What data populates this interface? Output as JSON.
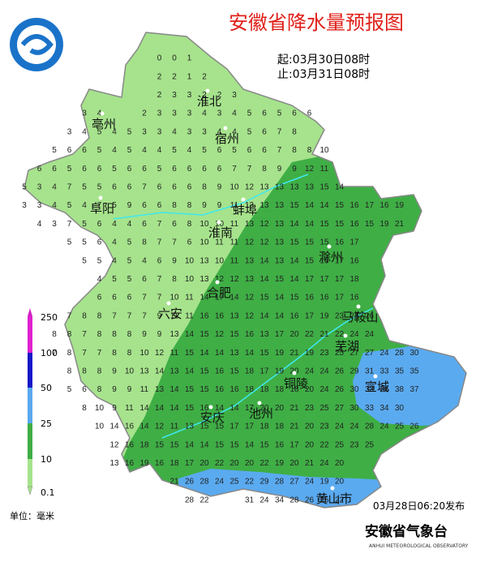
{
  "title": "安徽省降水量预报图",
  "period": {
    "start": "起:03月30日08时",
    "end": "止:03月31日08时"
  },
  "cities": [
    "淮北",
    "亳州",
    "宿州",
    "阜阳",
    "蚌埠",
    "淮南",
    "滁州",
    "合肥",
    "六安",
    "马鞍山",
    "芜湖",
    "铜陵",
    "宣城",
    "安庆",
    "池州",
    "黄山市"
  ],
  "legend": {
    "labels": [
      "250",
      "100",
      "50",
      "25",
      "10",
      "0.1"
    ],
    "unit": "单位：毫米"
  },
  "footer": {
    "issued": "03月28日06:20发布",
    "agency": "安徽省气象台",
    "agency_en": "ANHUI METEOROLOGICAL OBSERVATORY"
  },
  "grid": {
    "rows": [
      [
        null,
        null,
        null,
        null,
        null,
        null,
        null,
        null,
        null,
        0,
        0,
        1
      ],
      [
        null,
        null,
        null,
        null,
        null,
        null,
        null,
        null,
        null,
        2,
        2,
        1,
        2
      ],
      [
        null,
        null,
        null,
        null,
        null,
        null,
        null,
        null,
        null,
        2,
        3,
        3,
        2,
        2,
        3
      ],
      [
        null,
        null,
        null,
        null,
        3,
        4,
        null,
        null,
        2,
        3,
        3,
        3,
        4,
        3,
        4,
        5,
        6,
        5,
        6,
        6
      ],
      [
        null,
        null,
        null,
        3,
        4,
        5,
        4,
        5,
        3,
        3,
        4,
        3,
        3,
        4,
        4,
        5,
        6,
        7,
        8
      ],
      [
        null,
        null,
        5,
        6,
        6,
        5,
        4,
        5,
        4,
        4,
        5,
        4,
        5,
        6,
        5,
        6,
        6,
        7,
        8,
        8,
        10
      ],
      [
        null,
        6,
        6,
        5,
        6,
        6,
        5,
        6,
        6,
        5,
        6,
        6,
        6,
        6,
        7,
        7,
        8,
        9,
        9,
        12,
        11
      ],
      [
        5,
        3,
        4,
        7,
        5,
        5,
        6,
        6,
        7,
        6,
        6,
        6,
        8,
        9,
        10,
        12,
        13,
        13,
        13,
        13,
        15,
        14
      ],
      [
        3,
        3,
        4,
        5,
        4,
        7,
        5,
        9,
        6,
        6,
        8,
        8,
        9,
        9,
        11,
        13,
        13,
        13,
        15,
        14,
        14,
        15,
        16,
        17,
        16,
        19
      ],
      [
        null,
        4,
        3,
        7,
        5,
        6,
        4,
        4,
        6,
        7,
        6,
        8,
        10,
        10,
        11,
        13,
        12,
        13,
        14,
        14,
        15,
        15,
        16,
        15,
        19,
        21
      ],
      [
        null,
        null,
        null,
        5,
        5,
        6,
        4,
        5,
        8,
        7,
        7,
        6,
        10,
        11,
        11,
        12,
        12,
        13,
        15,
        15,
        15,
        16,
        17
      ],
      [
        null,
        null,
        null,
        null,
        5,
        5,
        4,
        5,
        4,
        6,
        9,
        10,
        13,
        10,
        11,
        13,
        14,
        13,
        14,
        15,
        16,
        17,
        16
      ],
      [
        null,
        null,
        null,
        null,
        null,
        4,
        5,
        5,
        6,
        7,
        8,
        10,
        13,
        12,
        12,
        13,
        14,
        15,
        14,
        17,
        17,
        17,
        18
      ],
      [
        null,
        null,
        null,
        null,
        null,
        6,
        6,
        6,
        7,
        7,
        10,
        11,
        14,
        17,
        14,
        12,
        15,
        14,
        15,
        16,
        16,
        17,
        16
      ],
      [
        null,
        null,
        null,
        7,
        8,
        8,
        7,
        7,
        7,
        9,
        11,
        11,
        16,
        16,
        13,
        12,
        14,
        14,
        16,
        17,
        19,
        23,
        24,
        26
      ],
      [
        null,
        null,
        8,
        8,
        7,
        8,
        8,
        8,
        9,
        9,
        13,
        14,
        15,
        12,
        15,
        16,
        13,
        17,
        20,
        22,
        21,
        22,
        24,
        24
      ],
      [
        null,
        null,
        7,
        8,
        7,
        7,
        8,
        8,
        10,
        12,
        11,
        15,
        14,
        14,
        13,
        14,
        15,
        19,
        21,
        19,
        23,
        25,
        27,
        27,
        24,
        28,
        30
      ],
      [
        null,
        null,
        null,
        8,
        8,
        8,
        9,
        10,
        13,
        14,
        13,
        14,
        15,
        16,
        15,
        18,
        17,
        19,
        20,
        24,
        24,
        26,
        29,
        31,
        33,
        35,
        35
      ],
      [
        null,
        null,
        null,
        5,
        6,
        8,
        9,
        9,
        11,
        13,
        14,
        15,
        15,
        16,
        16,
        18,
        18,
        18,
        18,
        20,
        24,
        26,
        30,
        33,
        36,
        38,
        37
      ],
      [
        null,
        null,
        null,
        null,
        8,
        10,
        9,
        11,
        14,
        14,
        14,
        15,
        16,
        14,
        14,
        17,
        20,
        20,
        21,
        23,
        25,
        27,
        30,
        33,
        34,
        30
      ],
      [
        null,
        null,
        null,
        null,
        null,
        10,
        14,
        16,
        14,
        12,
        11,
        13,
        15,
        15,
        17,
        17,
        18,
        18,
        21,
        20,
        23,
        24,
        24,
        28,
        24,
        25,
        26
      ],
      [
        null,
        null,
        null,
        null,
        null,
        null,
        12,
        16,
        18,
        15,
        15,
        14,
        14,
        15,
        15,
        14,
        15,
        16,
        17,
        20,
        22,
        25,
        23,
        25
      ],
      [
        null,
        null,
        null,
        null,
        null,
        null,
        13,
        16,
        19,
        16,
        18,
        17,
        20,
        22,
        20,
        20,
        22,
        19,
        20,
        21,
        24,
        20
      ],
      [
        null,
        null,
        null,
        null,
        null,
        null,
        null,
        null,
        null,
        null,
        21,
        26,
        28,
        24,
        25,
        22,
        29,
        28,
        27,
        24,
        19,
        20
      ],
      [
        null,
        null,
        null,
        null,
        null,
        null,
        null,
        null,
        null,
        null,
        null,
        28,
        22,
        null,
        null,
        31,
        24,
        34,
        28,
        26,
        25,
        22
      ]
    ]
  }
}
